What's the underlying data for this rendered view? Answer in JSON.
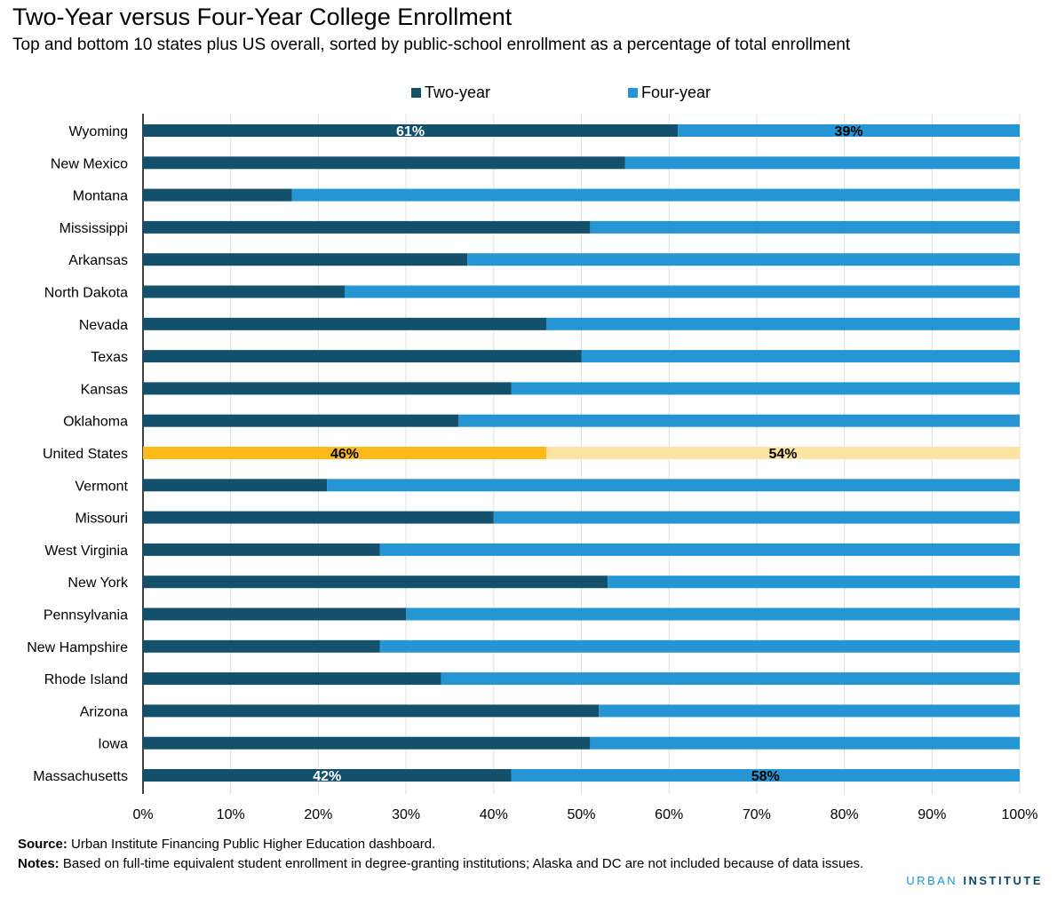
{
  "title": "Two-Year versus Four-Year College Enrollment",
  "subtitle": "Top and bottom 10 states plus US overall, sorted by public-school enrollment as a percentage of total enrollment",
  "colors": {
    "two_year": "#12506b",
    "four_year": "#2596d3",
    "us_two_year": "#fcb918",
    "us_four_year": "#fde3a2",
    "grid": "#dedede"
  },
  "footer": {
    "source_label": "Source:",
    "source_text": " Urban Institute Financing Public Higher Education dashboard.",
    "notes_label": "Notes:",
    "notes_text": " Based on full-time equivalent student enrollment in degree-granting institutions; Alaska and DC are not included because of data issues.",
    "brand_a": "URBAN",
    "brand_b": "INSTITUTE"
  },
  "chart_data": {
    "type": "bar",
    "orientation": "horizontal",
    "stacked": true,
    "percent_stacked": true,
    "title": "Two-Year versus Four-Year College Enrollment",
    "subtitle": "Top and bottom 10 states plus US overall, sorted by public-school enrollment as a percentage of total enrollment",
    "categories": [
      "Wyoming",
      "New Mexico",
      "Montana",
      "Mississippi",
      "Arkansas",
      "North Dakota",
      "Nevada",
      "Texas",
      "Kansas",
      "Oklahoma",
      "United States",
      "Vermont",
      "Missouri",
      "West Virginia",
      "New York",
      "Pennsylvania",
      "New Hampshire",
      "Rhode Island",
      "Arizona",
      "Iowa",
      "Massachusetts"
    ],
    "series": [
      {
        "name": "Two-year",
        "values": [
          61,
          55,
          17,
          51,
          37,
          23,
          46,
          50,
          42,
          36,
          46,
          21,
          40,
          27,
          53,
          30,
          27,
          34,
          52,
          51,
          42
        ]
      },
      {
        "name": "Four-year",
        "values": [
          39,
          45,
          83,
          49,
          63,
          77,
          54,
          50,
          58,
          64,
          54,
          79,
          60,
          73,
          47,
          70,
          73,
          66,
          48,
          49,
          58
        ]
      }
    ],
    "highlight_category": "United States",
    "data_labels": [
      {
        "category": "Wyoming",
        "two_year": "61%",
        "four_year": "39%"
      },
      {
        "category": "United States",
        "two_year": "46%",
        "four_year": "54%"
      },
      {
        "category": "Massachusetts",
        "two_year": "42%",
        "four_year": "58%"
      }
    ],
    "x_ticks": [
      "0%",
      "10%",
      "20%",
      "30%",
      "40%",
      "50%",
      "60%",
      "70%",
      "80%",
      "90%",
      "100%"
    ],
    "xlim": [
      0,
      100
    ],
    "grid": true,
    "legend_position": "top"
  }
}
